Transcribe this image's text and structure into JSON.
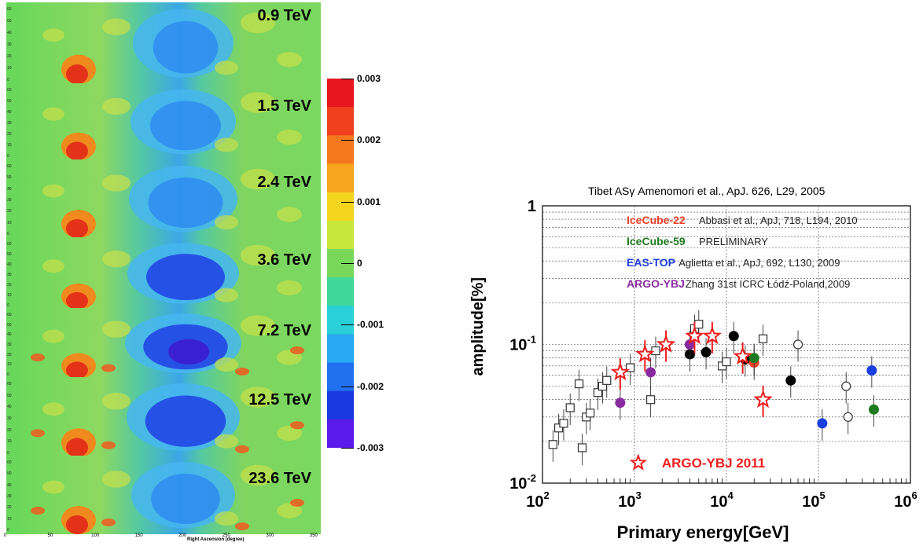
{
  "left_maps": {
    "panels": [
      {
        "label": "0.9 TeV",
        "deficit": 0.45
      },
      {
        "label": "1.5 TeV",
        "deficit": 0.6
      },
      {
        "label": "2.4 TeV",
        "deficit": 0.7
      },
      {
        "label": "3.6 TeV",
        "deficit": 0.8
      },
      {
        "label": "7.2 TeV",
        "deficit": 0.95
      },
      {
        "label": "12.5 TeV",
        "deficit": 0.85
      },
      {
        "label": "23.6 TeV",
        "deficit": 0.55
      }
    ],
    "y_ticks": [
      "60",
      "50",
      "40",
      "30",
      "20",
      "10",
      "0"
    ],
    "colorbar_labels": [
      "0.003",
      "0.002",
      "0.001",
      "0",
      "-0.001",
      "-0.002",
      "-0.003"
    ],
    "x_ticks": [
      "0",
      "50",
      "100",
      "150",
      "200",
      "250",
      "300",
      "350"
    ],
    "x_title": "Right Ascension (degree)"
  },
  "chart_data": {
    "type": "scatter",
    "ylabel": "amplitude[%]",
    "xlabel": "Primary energy[GeV]",
    "x_scale": "log",
    "y_scale": "log",
    "xlim": [
      100,
      1000000
    ],
    "ylim": [
      0.01,
      1
    ],
    "x_tick_labels": [
      "10^2",
      "10^3",
      "10^4",
      "10^5",
      "10^6"
    ],
    "y_tick_labels": [
      "10^-2",
      "10^-1",
      "1"
    ],
    "top_title": "Tibet ASγ Amenomori et al., ApJ. 626, L29, 2005",
    "legend": [
      {
        "name": "IceCube-22",
        "ref": "Abbasi et al., ApJ, 718, L194, 2010",
        "color": "#e8402a"
      },
      {
        "name": "IceCube-59",
        "ref": "PRELIMINARY",
        "color": "#1e7a1e"
      },
      {
        "name": "EAS-TOP",
        "ref": "Aglietta et al., ApJ, 692, L130, 2009",
        "color": "#1a3fe0"
      },
      {
        "name": "ARGO-YBJ",
        "ref": "Zhang 31st ICRC Łódź-Poland,2009",
        "color": "#8a2aa0"
      }
    ],
    "argo_2011_label": "ARGO-YBJ 2011",
    "series": [
      {
        "name": "Tibet ASγ",
        "marker": "open-square",
        "color": "#333333",
        "points": [
          [
            130,
            0.019
          ],
          [
            150,
            0.025
          ],
          [
            170,
            0.027
          ],
          [
            200,
            0.035
          ],
          [
            250,
            0.052
          ],
          [
            270,
            0.018
          ],
          [
            300,
            0.03
          ],
          [
            330,
            0.032
          ],
          [
            400,
            0.045
          ],
          [
            450,
            0.05
          ],
          [
            500,
            0.055
          ],
          [
            900,
            0.068
          ],
          [
            1500,
            0.04
          ],
          [
            1700,
            0.09
          ],
          [
            4500,
            0.13
          ],
          [
            5000,
            0.14
          ],
          [
            9000,
            0.07
          ],
          [
            10000,
            0.075
          ],
          [
            25000,
            0.11
          ]
        ]
      },
      {
        "name": "Tibet ASγ",
        "marker": "open-circle",
        "color": "#333333",
        "points": [
          [
            20000,
            0.08
          ],
          [
            60000,
            0.1
          ],
          [
            200000,
            0.05
          ],
          [
            210000,
            0.03
          ]
        ]
      },
      {
        "name": "Tibet ASγ",
        "marker": "filled-circle",
        "color": "#000000",
        "points": [
          [
            4000,
            0.085
          ],
          [
            6000,
            0.088
          ],
          [
            12000,
            0.115
          ],
          [
            16000,
            0.078
          ],
          [
            50000,
            0.055
          ]
        ]
      },
      {
        "name": "IceCube-22",
        "marker": "filled-circle",
        "color": "#e8402a",
        "points": [
          [
            20000,
            0.074
          ]
        ]
      },
      {
        "name": "IceCube-59",
        "marker": "filled-circle",
        "color": "#1e7a1e",
        "points": [
          [
            20000,
            0.08
          ],
          [
            400000,
            0.034
          ]
        ]
      },
      {
        "name": "EAS-TOP",
        "marker": "filled-circle",
        "color": "#1a3fe0",
        "points": [
          [
            110000,
            0.027
          ],
          [
            380000,
            0.065
          ]
        ]
      },
      {
        "name": "ARGO-YBJ",
        "marker": "filled-circle",
        "color": "#8a2aa0",
        "points": [
          [
            700,
            0.038
          ],
          [
            1500,
            0.063
          ],
          [
            4000,
            0.1
          ]
        ]
      },
      {
        "name": "ARGO-YBJ 2011",
        "marker": "star",
        "color": "#ee1c1c",
        "points": [
          [
            700,
            0.063
          ],
          [
            1300,
            0.085
          ],
          [
            2200,
            0.1
          ],
          [
            4500,
            0.115
          ],
          [
            7000,
            0.115
          ],
          [
            15000,
            0.082
          ],
          [
            25000,
            0.04
          ]
        ]
      }
    ]
  }
}
